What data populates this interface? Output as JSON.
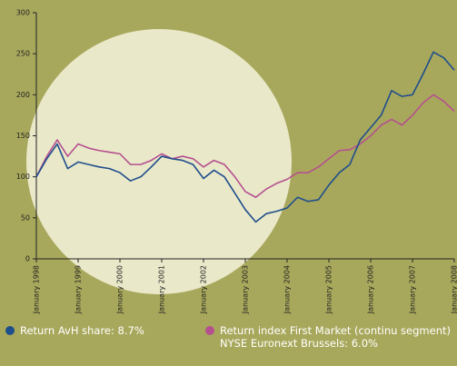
{
  "chart_data": {
    "type": "line",
    "x": [
      1998,
      1998.25,
      1998.5,
      1998.75,
      1999,
      1999.25,
      1999.5,
      1999.75,
      2000,
      2000.25,
      2000.5,
      2000.75,
      2001,
      2001.25,
      2001.5,
      2001.75,
      2002,
      2002.25,
      2002.5,
      2002.75,
      2003,
      2003.25,
      2003.5,
      2003.75,
      2004,
      2004.25,
      2004.5,
      2004.75,
      2005,
      2005.25,
      2005.5,
      2005.75,
      2006,
      2006.25,
      2006.5,
      2006.75,
      2007,
      2007.25,
      2007.5,
      2007.75,
      2008
    ],
    "series": [
      {
        "name": "Return AvH share: 8.7%",
        "color": "#1f4e8c",
        "values": [
          100,
          122,
          140,
          110,
          118,
          115,
          112,
          110,
          105,
          95,
          100,
          112,
          125,
          122,
          120,
          115,
          98,
          108,
          100,
          80,
          60,
          45,
          55,
          58,
          62,
          75,
          70,
          72,
          90,
          105,
          115,
          145,
          160,
          175,
          205,
          198,
          200,
          225,
          252,
          245,
          230
        ]
      },
      {
        "name": "Return index First Market (continu segment) NYSE Euronext Brussels: 6.0%",
        "color": "#b5508f",
        "values": [
          100,
          125,
          145,
          125,
          140,
          135,
          132,
          130,
          128,
          115,
          115,
          120,
          128,
          122,
          125,
          122,
          112,
          120,
          115,
          100,
          82,
          75,
          85,
          92,
          97,
          105,
          105,
          112,
          122,
          132,
          133,
          140,
          150,
          163,
          170,
          163,
          175,
          190,
          200,
          192,
          180
        ]
      }
    ],
    "xlim": [
      1998,
      2008
    ],
    "xticks": [
      {
        "value": 1998,
        "label": "January 1998"
      },
      {
        "value": 1999,
        "label": "January 1999"
      },
      {
        "value": 2000,
        "label": "January 2000"
      },
      {
        "value": 2001,
        "label": "January 2001"
      },
      {
        "value": 2002,
        "label": "January 2002"
      },
      {
        "value": 2003,
        "label": "January 2003"
      },
      {
        "value": 2004,
        "label": "January 2004"
      },
      {
        "value": 2005,
        "label": "January 2005"
      },
      {
        "value": 2006,
        "label": "January 2006"
      },
      {
        "value": 2007,
        "label": "January 2007"
      },
      {
        "value": 2008,
        "label": "January 2008"
      }
    ],
    "ylim": [
      0,
      300
    ],
    "yticks": [
      0,
      50,
      100,
      150,
      200,
      250,
      300
    ],
    "grid": false
  }
}
